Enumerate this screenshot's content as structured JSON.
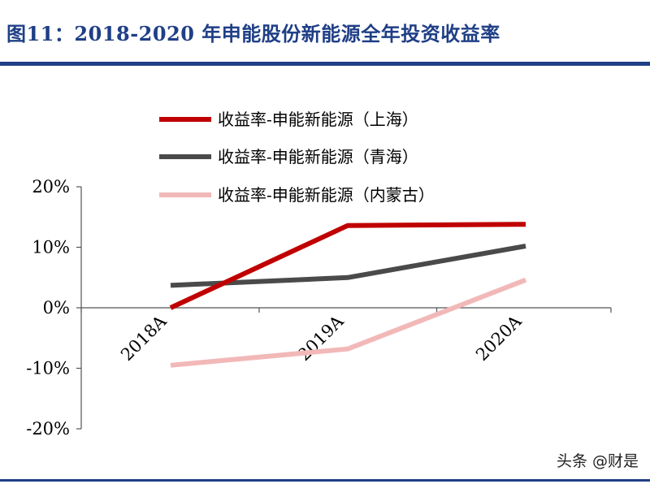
{
  "figure_title": "图11：2018-2020 年申能股份新能源全年投资收益率",
  "watermark": "头条 @财是",
  "chart_data": {
    "type": "line",
    "title": "",
    "xlabel": "",
    "ylabel": "",
    "categories": [
      "2018A",
      "2019A",
      "2020A"
    ],
    "ylim": [
      -20,
      20
    ],
    "yticks": [
      -20,
      -10,
      0,
      10,
      20
    ],
    "ytick_labels": [
      "-20%",
      "-10%",
      "0%",
      "10%",
      "20%"
    ],
    "grid": false,
    "legend_position": "top",
    "series": [
      {
        "name": "收益率-申能新能源（上海）",
        "color": "#c00000",
        "values": [
          0.0,
          13.6,
          13.8
        ]
      },
      {
        "name": "收益率-申能新能源（青海）",
        "color": "#4a4a4a",
        "values": [
          3.7,
          5.0,
          10.2
        ]
      },
      {
        "name": "收益率-申能新能源（内蒙古）",
        "color": "#f2b8b8",
        "values": [
          -9.5,
          -6.8,
          4.6
        ]
      }
    ]
  }
}
